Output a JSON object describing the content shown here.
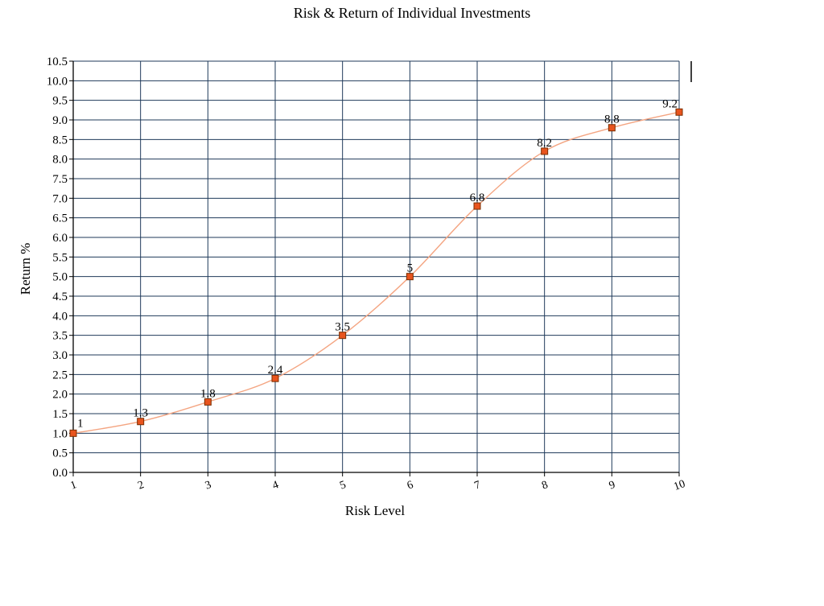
{
  "chart_data": {
    "type": "line",
    "title": "Risk & Return of Individual Investments",
    "xlabel": "Risk Level",
    "ylabel": "Return %",
    "x": [
      1,
      2,
      3,
      4,
      5,
      6,
      7,
      8,
      9,
      10
    ],
    "x_tick_labels": [
      "1",
      "2",
      "3",
      "4",
      "5",
      "6",
      "7",
      "8",
      "9",
      "10"
    ],
    "y_tick_labels": [
      "0.0",
      "0.5",
      "1.0",
      "1.5",
      "2.0",
      "2.5",
      "3.0",
      "3.5",
      "4.0",
      "4.5",
      "5.0",
      "5.5",
      "6.0",
      "6.5",
      "7.0",
      "7.5",
      "8.0",
      "8.5",
      "9.0",
      "9.5",
      "10.0",
      "10.5"
    ],
    "series": [
      {
        "values": [
          1,
          1.3,
          1.8,
          2.4,
          3.5,
          5,
          6.8,
          8.2,
          8.8,
          9.2
        ],
        "data_labels": [
          "1",
          "1.3",
          "1.8",
          "2.4",
          "3.5",
          "5",
          "6.8",
          "8.2",
          "8.8",
          "9.2"
        ]
      }
    ],
    "xlim": [
      1,
      10
    ],
    "ylim": [
      0,
      10.5
    ],
    "grid": true,
    "legend": "none",
    "colors": {
      "line": "#f4a582",
      "marker_fill": "#e8541e",
      "grid": "#1f3a5a"
    }
  }
}
